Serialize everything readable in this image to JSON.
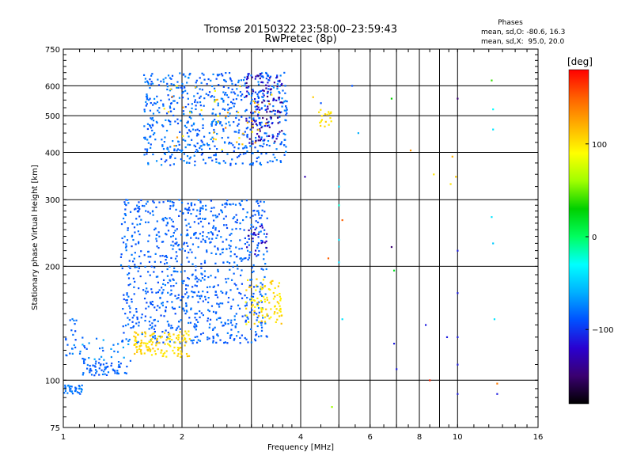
{
  "chart_data": {
    "type": "scatter",
    "title": "Tromsø 20150322 23:58:00–23:59:43",
    "subtitle": "RwPretec (8p)",
    "xlabel": "Frequency [MHz]",
    "ylabel": "Stationary phase Virtual Height [km]",
    "x_scale": "log",
    "y_scale": "log",
    "xlim": [
      1,
      16
    ],
    "ylim": [
      75,
      750
    ],
    "x_ticks": [
      1,
      2,
      4,
      6,
      8,
      10,
      16
    ],
    "x_tick_labels": [
      "1",
      "2",
      "4",
      "6",
      "8",
      "10",
      "16"
    ],
    "y_ticks": [
      75,
      100,
      200,
      300,
      400,
      500,
      600,
      750
    ],
    "y_tick_labels": [
      "75",
      "100",
      "200",
      "300",
      "400",
      "500",
      "600",
      "750"
    ],
    "extra_x_gridlines": [
      3,
      5,
      7,
      9
    ],
    "extra_y_gridlines": [],
    "grid": true,
    "phase_legend": {
      "title": "Phases",
      "line_o": "mean, sd,O: -80.6, 16.3",
      "line_x": "mean, sd,X:  95.0, 20.0"
    },
    "colorbar": {
      "label": "[deg]",
      "min": -180,
      "max": 180,
      "ticks": [
        100,
        0,
        -100
      ],
      "tick_labels": [
        "100",
        "0",
        "−100"
      ],
      "colors": [
        "#000000",
        "#3a0070",
        "#2a00d0",
        "#0050ff",
        "#00b0ff",
        "#00ffff",
        "#00ff60",
        "#00d000",
        "#a0ff00",
        "#ffff00",
        "#ffb000",
        "#ff6000",
        "#ff0000"
      ]
    },
    "clusters": [
      {
        "x": [
          1.0,
          1.12
        ],
        "y": [
          92,
          97
        ],
        "phase": [
          -90,
          -70
        ],
        "n": 35
      },
      {
        "x": [
          1.0,
          1.08
        ],
        "y": [
          110,
          150
        ],
        "phase": [
          -95,
          -70
        ],
        "n": 20
      },
      {
        "x": [
          1.12,
          1.45
        ],
        "y": [
          103,
          112
        ],
        "phase": [
          -95,
          -75
        ],
        "n": 60
      },
      {
        "x": [
          1.1,
          1.5
        ],
        "y": [
          112,
          130
        ],
        "phase": [
          -90,
          -60
        ],
        "n": 35
      },
      {
        "x": [
          1.4,
          3.3
        ],
        "y": [
          125,
          300
        ],
        "phase": [
          -95,
          -75
        ],
        "n": 900
      },
      {
        "x": [
          1.5,
          2.1
        ],
        "y": [
          115,
          135
        ],
        "phase": [
          95,
          115
        ],
        "n": 130
      },
      {
        "x": [
          2.9,
          3.6
        ],
        "y": [
          140,
          185
        ],
        "phase": [
          90,
          115
        ],
        "n": 90
      },
      {
        "x": [
          2.9,
          3.3
        ],
        "y": [
          215,
          260
        ],
        "phase": [
          -140,
          -110
        ],
        "n": 20
      },
      {
        "x": [
          1.6,
          3.7
        ],
        "y": [
          370,
          650
        ],
        "phase": [
          -95,
          -70
        ],
        "n": 650
      },
      {
        "x": [
          2.9,
          3.6
        ],
        "y": [
          420,
          650
        ],
        "phase": [
          -150,
          -110
        ],
        "n": 110
      },
      {
        "x": [
          1.8,
          3.4
        ],
        "y": [
          400,
          600
        ],
        "phase": [
          85,
          140
        ],
        "n": 45
      },
      {
        "x": [
          4.4,
          4.8
        ],
        "y": [
          460,
          520
        ],
        "phase": [
          95,
          110
        ],
        "n": 18
      }
    ],
    "sparse_points": [
      {
        "x": 4.1,
        "y": 345,
        "phase": -130
      },
      {
        "x": 4.3,
        "y": 560,
        "phase": 110
      },
      {
        "x": 4.5,
        "y": 540,
        "phase": -90
      },
      {
        "x": 4.7,
        "y": 210,
        "phase": 150
      },
      {
        "x": 5.0,
        "y": 325,
        "phase": -40
      },
      {
        "x": 5.0,
        "y": 290,
        "phase": -20
      },
      {
        "x": 5.0,
        "y": 235,
        "phase": -40
      },
      {
        "x": 5.0,
        "y": 205,
        "phase": -45
      },
      {
        "x": 5.1,
        "y": 145,
        "phase": -40
      },
      {
        "x": 5.1,
        "y": 265,
        "phase": 150
      },
      {
        "x": 5.4,
        "y": 600,
        "phase": -90
      },
      {
        "x": 5.6,
        "y": 450,
        "phase": -60
      },
      {
        "x": 4.8,
        "y": 85,
        "phase": 60
      },
      {
        "x": 6.8,
        "y": 555,
        "phase": 30
      },
      {
        "x": 6.8,
        "y": 225,
        "phase": -150
      },
      {
        "x": 6.9,
        "y": 195,
        "phase": 20
      },
      {
        "x": 6.9,
        "y": 125,
        "phase": -110
      },
      {
        "x": 7.0,
        "y": 107,
        "phase": -110
      },
      {
        "x": 7.6,
        "y": 405,
        "phase": 130
      },
      {
        "x": 8.3,
        "y": 140,
        "phase": -110
      },
      {
        "x": 8.5,
        "y": 100,
        "phase": 170
      },
      {
        "x": 8.7,
        "y": 350,
        "phase": 100
      },
      {
        "x": 9.4,
        "y": 130,
        "phase": -110
      },
      {
        "x": 9.6,
        "y": 330,
        "phase": 100
      },
      {
        "x": 9.7,
        "y": 390,
        "phase": 120
      },
      {
        "x": 9.9,
        "y": 345,
        "phase": 110
      },
      {
        "x": 10.0,
        "y": 555,
        "phase": -150
      },
      {
        "x": 10.0,
        "y": 220,
        "phase": -110
      },
      {
        "x": 10.0,
        "y": 170,
        "phase": -110
      },
      {
        "x": 10.0,
        "y": 130,
        "phase": -110
      },
      {
        "x": 10.0,
        "y": 110,
        "phase": -110
      },
      {
        "x": 10.0,
        "y": 92,
        "phase": -110
      },
      {
        "x": 12.2,
        "y": 620,
        "phase": 40
      },
      {
        "x": 12.3,
        "y": 520,
        "phase": -30
      },
      {
        "x": 12.3,
        "y": 460,
        "phase": -40
      },
      {
        "x": 12.2,
        "y": 270,
        "phase": -40
      },
      {
        "x": 12.3,
        "y": 230,
        "phase": -50
      },
      {
        "x": 12.4,
        "y": 145,
        "phase": -40
      },
      {
        "x": 12.6,
        "y": 98,
        "phase": 140
      },
      {
        "x": 12.6,
        "y": 92,
        "phase": -110
      }
    ]
  }
}
